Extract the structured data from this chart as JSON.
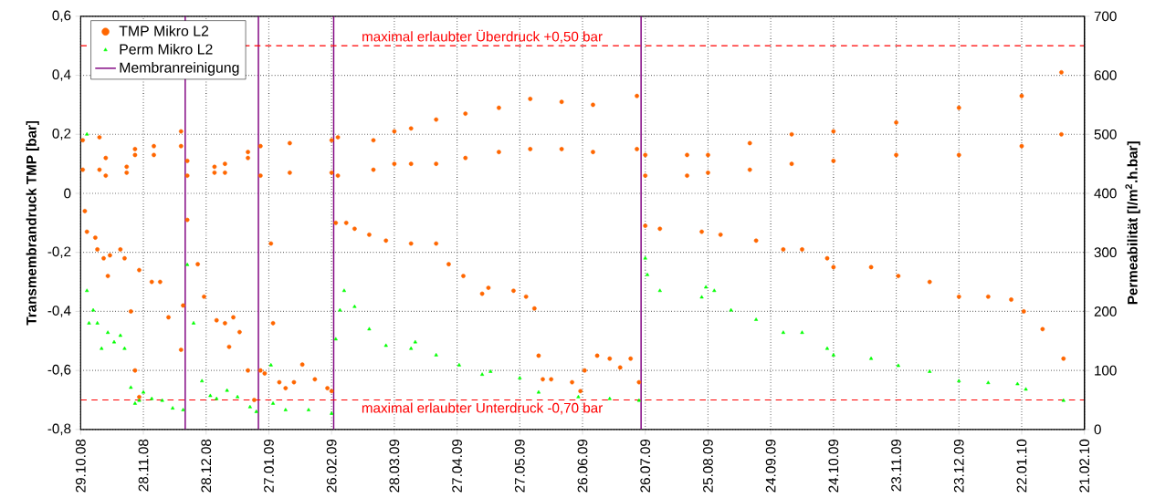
{
  "chart_data": {
    "type": "scatter",
    "ylabel": "Transmembrandruck TMP [bar]",
    "y2label": "Permeabilität [l/m$^{2}$.h.bar]",
    "xlim": [
      "2008-10-29",
      "2010-02-21"
    ],
    "xticks": [
      {
        "value": "2008-10-29",
        "label": "29.10.08"
      },
      {
        "value": "2008-11-28",
        "label": "28.11.08"
      },
      {
        "value": "2008-12-28",
        "label": "28.12.08"
      },
      {
        "value": "2009-01-27",
        "label": "27.01.09"
      },
      {
        "value": "2009-02-26",
        "label": "26.02.09"
      },
      {
        "value": "2009-03-28",
        "label": "28.03.09"
      },
      {
        "value": "2009-04-27",
        "label": "27.04.09"
      },
      {
        "value": "2009-05-27",
        "label": "27.05.09"
      },
      {
        "value": "2009-06-26",
        "label": "26.06.09"
      },
      {
        "value": "2009-07-26",
        "label": "26.07.09"
      },
      {
        "value": "2009-08-25",
        "label": "25.08.09"
      },
      {
        "value": "2009-09-24",
        "label": "24.09.09"
      },
      {
        "value": "2009-10-24",
        "label": "24.10.09"
      },
      {
        "value": "2009-11-23",
        "label": "23.11.09"
      },
      {
        "value": "2009-12-23",
        "label": "23.12.09"
      },
      {
        "value": "2010-01-22",
        "label": "22.01.10"
      },
      {
        "value": "2010-02-21",
        "label": "21.02.10"
      }
    ],
    "ylim": [
      -0.8,
      0.6
    ],
    "yticks": [
      {
        "value": -0.8,
        "label": "-0,8"
      },
      {
        "value": -0.6,
        "label": "-0,6"
      },
      {
        "value": -0.4,
        "label": "-0,4"
      },
      {
        "value": -0.2,
        "label": "-0,2"
      },
      0,
      {
        "value": 0.2,
        "label": "0,2"
      },
      {
        "value": 0.4,
        "label": "0,4"
      },
      {
        "value": 0.6,
        "label": "0,6"
      }
    ],
    "y2lim": [
      0,
      700
    ],
    "y2ticks": [
      0,
      100,
      200,
      300,
      400,
      500,
      600,
      700
    ],
    "grid": true,
    "legend": "top left",
    "ref_lines": [
      {
        "axis": "y",
        "value": 0.5,
        "label": "maximal erlaubter Überdruck +0,50 bar",
        "color": "#ff0000",
        "line_style": "dashed"
      },
      {
        "axis": "y",
        "value": -0.7,
        "label": "maximal erlaubter Unterdruck -0,70 bar",
        "color": "#ff0000",
        "line_style": "dashed"
      }
    ],
    "series": [
      {
        "name": "TMP Mikro L2",
        "color": "#ff6600",
        "marker": "circle",
        "x": [
          "2008-10-30",
          "2008-10-30",
          "2008-11-07",
          "2008-11-07",
          "2008-11-10",
          "2008-11-10",
          "2008-11-20",
          "2008-11-20",
          "2008-11-24",
          "2008-11-24",
          "2008-12-03",
          "2008-12-03",
          "2008-12-16",
          "2008-12-16",
          "2008-12-19",
          "2008-12-19",
          "2009-01-01",
          "2009-01-01",
          "2009-01-06",
          "2009-01-06",
          "2009-01-17",
          "2009-01-17",
          "2009-01-23",
          "2009-01-23",
          "2009-02-06",
          "2009-02-06",
          "2009-02-26",
          "2009-02-26",
          "2009-03-01",
          "2009-03-01",
          "2009-03-18",
          "2009-03-18",
          "2009-03-28",
          "2009-03-28",
          "2009-04-05",
          "2009-04-05",
          "2009-04-17",
          "2009-04-17",
          "2009-05-01",
          "2009-05-01",
          "2009-05-17",
          "2009-05-17",
          "2009-06-01",
          "2009-06-01",
          "2009-06-16",
          "2009-06-16",
          "2009-07-01",
          "2009-07-01",
          "2009-07-22",
          "2009-07-22",
          "2009-07-26",
          "2009-07-26",
          "2009-08-15",
          "2009-08-15",
          "2009-08-25",
          "2009-08-25",
          "2009-09-14",
          "2009-09-14",
          "2009-10-04",
          "2009-10-04",
          "2009-10-24",
          "2009-10-24",
          "2009-11-23",
          "2009-11-23",
          "2009-12-23",
          "2009-12-23",
          "2010-01-22",
          "2010-01-22",
          "2010-02-10",
          "2010-02-10",
          "2008-10-31",
          "2008-11-01",
          "2008-11-05",
          "2008-11-06",
          "2008-11-09",
          "2008-11-11",
          "2008-11-12",
          "2008-11-17",
          "2008-11-19",
          "2008-11-22",
          "2008-11-24",
          "2008-11-26",
          "2008-11-26",
          "2008-12-02",
          "2008-12-06",
          "2008-12-10",
          "2008-12-16",
          "2008-12-17",
          "2008-12-19",
          "2008-12-24",
          "2008-12-27",
          "2009-01-02",
          "2009-01-06",
          "2009-01-08",
          "2009-01-10",
          "2009-01-13",
          "2009-01-17",
          "2009-01-20",
          "2009-01-23",
          "2009-01-25",
          "2009-01-28",
          "2009-01-29",
          "2009-02-01",
          "2009-02-04",
          "2009-02-08",
          "2009-02-12",
          "2009-02-18",
          "2009-02-24",
          "2009-02-26",
          "2009-02-28",
          "2009-03-05",
          "2009-03-09",
          "2009-03-16",
          "2009-03-24",
          "2009-04-05",
          "2009-04-17",
          "2009-04-23",
          "2009-04-30",
          "2009-05-09",
          "2009-05-12",
          "2009-05-24",
          "2009-05-30",
          "2009-06-03",
          "2009-06-05",
          "2009-06-07",
          "2009-06-11",
          "2009-06-21",
          "2009-06-25",
          "2009-06-27",
          "2009-07-03",
          "2009-07-09",
          "2009-07-14",
          "2009-07-19",
          "2009-07-23",
          "2009-07-26",
          "2009-08-02",
          "2009-08-22",
          "2009-08-31",
          "2009-09-17",
          "2009-09-30",
          "2009-10-09",
          "2009-10-21",
          "2009-10-24",
          "2009-11-11",
          "2009-11-24",
          "2009-12-09",
          "2009-12-23",
          "2010-01-06",
          "2010-01-17",
          "2010-01-23",
          "2010-02-01",
          "2010-02-11"
        ],
        "values": [
          0.08,
          0.18,
          0.08,
          0.19,
          0.06,
          0.12,
          0.07,
          0.09,
          0.13,
          0.15,
          0.13,
          0.16,
          0.16,
          0.21,
          0.06,
          0.11,
          0.07,
          0.09,
          0.07,
          0.1,
          0.12,
          0.14,
          0.06,
          0.16,
          0.07,
          0.17,
          0.07,
          0.18,
          0.06,
          0.19,
          0.08,
          0.18,
          0.1,
          0.21,
          0.1,
          0.22,
          0.1,
          0.25,
          0.12,
          0.27,
          0.14,
          0.29,
          0.15,
          0.32,
          0.15,
          0.31,
          0.14,
          0.3,
          0.15,
          0.33,
          0.06,
          0.13,
          0.06,
          0.13,
          0.07,
          0.13,
          0.08,
          0.17,
          0.1,
          0.2,
          0.11,
          0.21,
          0.13,
          0.24,
          0.13,
          0.29,
          0.16,
          0.33,
          0.2,
          0.41,
          -0.06,
          -0.13,
          -0.15,
          -0.19,
          -0.22,
          -0.28,
          -0.21,
          -0.19,
          -0.22,
          -0.4,
          -0.6,
          -0.69,
          -0.26,
          -0.3,
          -0.3,
          -0.42,
          -0.53,
          -0.38,
          -0.09,
          -0.24,
          -0.35,
          -0.43,
          -0.44,
          -0.52,
          -0.42,
          -0.47,
          -0.6,
          -0.7,
          -0.6,
          -0.61,
          -0.17,
          -0.44,
          -0.64,
          -0.66,
          -0.64,
          -0.58,
          -0.63,
          -0.66,
          -0.67,
          -0.1,
          -0.1,
          -0.12,
          -0.14,
          -0.16,
          -0.17,
          -0.17,
          -0.24,
          -0.28,
          -0.34,
          -0.32,
          -0.33,
          -0.35,
          -0.39,
          -0.55,
          -0.63,
          -0.63,
          -0.64,
          -0.67,
          -0.6,
          -0.55,
          -0.56,
          -0.59,
          -0.56,
          -0.64,
          -0.11,
          -0.12,
          -0.13,
          -0.14,
          -0.16,
          -0.19,
          -0.19,
          -0.22,
          -0.25,
          -0.25,
          -0.28,
          -0.3,
          -0.35,
          -0.35,
          -0.36,
          -0.4,
          -0.46,
          -0.56
        ]
      },
      {
        "name": "Perm Mikro L2",
        "color": "#00ff00",
        "marker": "triangle",
        "axis": "y2",
        "x": [
          "2008-11-01",
          "2008-11-01",
          "2008-11-02",
          "2008-11-04",
          "2008-11-06",
          "2008-11-08",
          "2008-11-11",
          "2008-11-14",
          "2008-11-17",
          "2008-11-19",
          "2008-11-22",
          "2008-11-24",
          "2008-11-26",
          "2008-11-28",
          "2008-12-02",
          "2008-12-07",
          "2008-12-12",
          "2008-12-17",
          "2008-12-19",
          "2008-12-22",
          "2008-12-26",
          "2008-12-30",
          "2009-01-02",
          "2009-01-07",
          "2009-01-12",
          "2009-01-18",
          "2009-01-21",
          "2009-01-28",
          "2009-01-29",
          "2009-02-04",
          "2009-02-15",
          "2009-02-26",
          "2009-02-28",
          "2009-03-02",
          "2009-03-04",
          "2009-03-09",
          "2009-03-16",
          "2009-03-24",
          "2009-04-05",
          "2009-04-07",
          "2009-04-17",
          "2009-04-28",
          "2009-05-09",
          "2009-05-13",
          "2009-05-27",
          "2009-06-05",
          "2009-06-24",
          "2009-07-09",
          "2009-07-23",
          "2009-07-26",
          "2009-07-27",
          "2009-08-02",
          "2009-08-22",
          "2009-08-24",
          "2009-08-28",
          "2009-09-05",
          "2009-09-17",
          "2009-09-30",
          "2009-10-09",
          "2009-10-21",
          "2009-10-24",
          "2009-11-11",
          "2009-11-24",
          "2009-12-09",
          "2009-12-23",
          "2010-01-06",
          "2010-01-20",
          "2010-01-24",
          "2010-02-11"
        ],
        "values": [
          500,
          235,
          180,
          202,
          180,
          137,
          164,
          148,
          159,
          137,
          71,
          44,
          49,
          63,
          52,
          49,
          36,
          33,
          279,
          180,
          82,
          57,
          52,
          66,
          55,
          38,
          30,
          109,
          44,
          33,
          33,
          27,
          153,
          202,
          235,
          208,
          170,
          142,
          137,
          148,
          126,
          109,
          93,
          98,
          87,
          63,
          55,
          52,
          49,
          290,
          262,
          235,
          224,
          241,
          235,
          202,
          186,
          164,
          164,
          137,
          126,
          120,
          108,
          98,
          82,
          79,
          77,
          68,
          49
        ]
      },
      {
        "name": "Membranreinigung",
        "color": "#800080",
        "type": "line",
        "line_style": "solid",
        "x": [
          "2008-12-18",
          "2008-12-18",
          null,
          "2009-01-22",
          "2009-01-22",
          null,
          "2009-02-27",
          "2009-02-27",
          null,
          "2009-07-24",
          "2009-07-24"
        ],
        "values": [
          -0.8,
          0.6,
          null,
          -0.8,
          0.6,
          null,
          -0.8,
          0.6,
          null,
          -0.8,
          0.6
        ]
      }
    ]
  }
}
